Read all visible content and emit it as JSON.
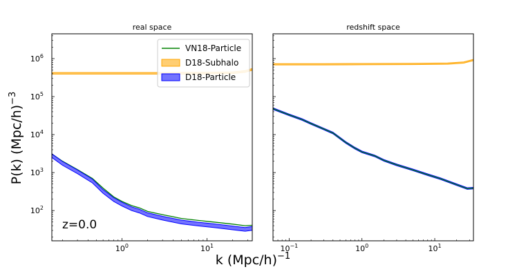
{
  "figure": {
    "xlabel": "k (Mpc/h)",
    "xlabel_exp": "−1",
    "ylabel": "P(k) (Mpc/h)",
    "ylabel_exp": "−3",
    "annotation": "z=0.0"
  },
  "chart_data": [
    {
      "type": "line",
      "title": "real space",
      "xscale": "log",
      "yscale": "log",
      "xlim": [
        0.15,
        34
      ],
      "ylim": [
        16,
        4500000
      ],
      "xticks": [
        {
          "value": 1,
          "base": "10",
          "exp": "0"
        },
        {
          "value": 10,
          "base": "10",
          "exp": "1"
        }
      ],
      "yticks": [
        {
          "value": 100,
          "base": "10",
          "exp": "2"
        },
        {
          "value": 1000,
          "base": "10",
          "exp": "3"
        },
        {
          "value": 10000,
          "base": "10",
          "exp": "4"
        },
        {
          "value": 100000,
          "base": "10",
          "exp": "5"
        },
        {
          "value": 1000000,
          "base": "10",
          "exp": "6"
        }
      ],
      "legend_position": "top-right",
      "series": [
        {
          "name": "VN18-Particle",
          "style": "line",
          "color": "#008000",
          "x": [
            0.15,
            0.2,
            0.3,
            0.45,
            0.6,
            0.8,
            1.0,
            1.3,
            1.6,
            2.0,
            3.0,
            5.0,
            8.0,
            12.0,
            20.0,
            28.0,
            34.0
          ],
          "y": [
            3100,
            2000,
            1200,
            700,
            390,
            230,
            175,
            135,
            118,
            95,
            78,
            62,
            55,
            50,
            44,
            40,
            41
          ]
        },
        {
          "name": "D18-Subhalo",
          "style": "band",
          "color": "#ffa500",
          "x": [
            0.15,
            0.5,
            1.0,
            3.0,
            10.0,
            20.0,
            28.0,
            34.0
          ],
          "y": [
            410000,
            410000,
            410000,
            411000,
            415000,
            425000,
            460000,
            520000
          ],
          "band_factor": 1.05
        },
        {
          "name": "D18-Particle",
          "style": "band",
          "color": "#0000ff",
          "x": [
            0.15,
            0.2,
            0.3,
            0.45,
            0.6,
            0.8,
            1.0,
            1.3,
            1.6,
            2.0,
            3.0,
            5.0,
            8.0,
            12.0,
            20.0,
            28.0,
            34.0
          ],
          "y": [
            2800,
            1750,
            1050,
            600,
            320,
            195,
            148,
            112,
            97,
            78,
            63,
            50,
            44,
            40,
            35,
            32,
            34
          ],
          "band_factor": 1.12
        }
      ]
    },
    {
      "type": "line",
      "title": "redshift space",
      "xscale": "log",
      "yscale": "log",
      "xlim": [
        0.06,
        34
      ],
      "ylim": [
        16,
        4500000
      ],
      "xticks": [
        {
          "value": 0.1,
          "base": "10",
          "exp": "−1"
        },
        {
          "value": 1,
          "base": "10",
          "exp": "0"
        },
        {
          "value": 10,
          "base": "10",
          "exp": "1"
        }
      ],
      "yticks": [
        {
          "value": 100,
          "base": "",
          "exp": ""
        },
        {
          "value": 1000,
          "base": "",
          "exp": ""
        },
        {
          "value": 10000,
          "base": "",
          "exp": ""
        },
        {
          "value": 100000,
          "base": "",
          "exp": ""
        },
        {
          "value": 1000000,
          "base": "",
          "exp": ""
        }
      ],
      "legend_position": "none",
      "series": [
        {
          "name": "",
          "style": "band",
          "color": "#ffa500",
          "x": [
            0.06,
            0.3,
            1.0,
            5.0,
            15.0,
            25.0,
            34.0
          ],
          "y": [
            710000,
            710000,
            715000,
            725000,
            740000,
            790000,
            920000
          ],
          "band_factor": 1.04
        },
        {
          "name": "",
          "style": "band",
          "color": "#0000ff",
          "x": [
            0.06,
            0.1,
            0.15,
            0.2,
            0.3,
            0.4,
            0.6,
            0.8,
            1.0,
            1.5,
            2.0,
            3.0,
            5.0,
            8.0,
            12.0,
            20.0,
            28.0,
            34.0
          ],
          "y": [
            48000,
            33000,
            25000,
            19500,
            14000,
            11000,
            6200,
            4400,
            3500,
            2750,
            2100,
            1600,
            1180,
            880,
            690,
            480,
            380,
            390
          ],
          "band_factor": 1.05
        },
        {
          "name": "",
          "style": "line",
          "color": "#008000",
          "x": [
            0.06,
            0.1,
            0.15,
            0.2,
            0.3,
            0.4,
            0.6,
            0.8,
            1.0,
            1.5,
            2.0,
            3.0,
            5.0,
            8.0,
            12.0,
            20.0,
            28.0,
            34.0
          ],
          "y": [
            48000,
            33000,
            25000,
            19500,
            14000,
            11000,
            6200,
            4400,
            3500,
            2750,
            2100,
            1600,
            1180,
            880,
            690,
            480,
            380,
            390
          ]
        }
      ]
    }
  ]
}
